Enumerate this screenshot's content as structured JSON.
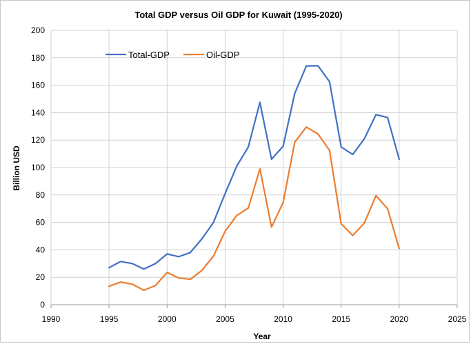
{
  "chart_data": {
    "type": "line",
    "title": "Total GDP versus Oil GDP for Kuwait (1995-2020)",
    "xlabel": "Year",
    "ylabel": "Billion USD",
    "xlim": [
      1990,
      2025
    ],
    "ylim": [
      0,
      200
    ],
    "x_ticks": [
      1990,
      1995,
      2000,
      2005,
      2010,
      2015,
      2020,
      2025
    ],
    "y_ticks": [
      0,
      20,
      40,
      60,
      80,
      100,
      120,
      140,
      160,
      180,
      200
    ],
    "grid": "vertical and horizontal major gridlines",
    "legend_position": "top-left inside plot",
    "x": [
      1995,
      1996,
      1997,
      1998,
      1999,
      2000,
      2001,
      2002,
      2003,
      2004,
      2005,
      2006,
      2007,
      2008,
      2009,
      2010,
      2011,
      2012,
      2013,
      2014,
      2015,
      2016,
      2017,
      2018,
      2019,
      2020
    ],
    "series": [
      {
        "name": "Total-GDP",
        "color": "#4472C4",
        "values": [
          27,
          31.5,
          30,
          26,
          30,
          37,
          35,
          38,
          48,
          60,
          81,
          101,
          115,
          147.5,
          106,
          115.5,
          154,
          174,
          174.2,
          162.5,
          115,
          109.5,
          121,
          138.5,
          136.5,
          106
        ]
      },
      {
        "name": "Oil-GDP",
        "color": "#ED7D31",
        "values": [
          13.5,
          16.5,
          15,
          10.5,
          14,
          23.5,
          19.5,
          18.5,
          25,
          35.5,
          53.5,
          65,
          70.5,
          99,
          56.5,
          74.5,
          118.5,
          129.5,
          124.5,
          112.5,
          59,
          50.5,
          59.5,
          79.5,
          70,
          41
        ]
      }
    ]
  }
}
